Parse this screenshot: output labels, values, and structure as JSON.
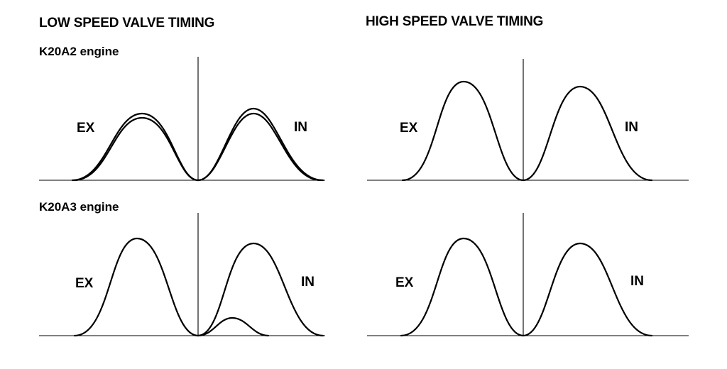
{
  "columns": {
    "low": {
      "title": "LOW SPEED VALVE TIMING"
    },
    "high": {
      "title": "HIGH SPEED VALVE TIMING"
    }
  },
  "engines": [
    {
      "name": "K20A2 engine",
      "low": {
        "ex_label": "EX",
        "in_label": "IN"
      },
      "high": {
        "ex_label": "EX",
        "in_label": "IN"
      }
    },
    {
      "name": "K20A3 engine",
      "low": {
        "ex_label": "EX",
        "in_label": "IN"
      },
      "high": {
        "ex_label": "EX",
        "in_label": "IN"
      }
    }
  ],
  "colors": {
    "line": "#000000",
    "background": "#ffffff"
  }
}
